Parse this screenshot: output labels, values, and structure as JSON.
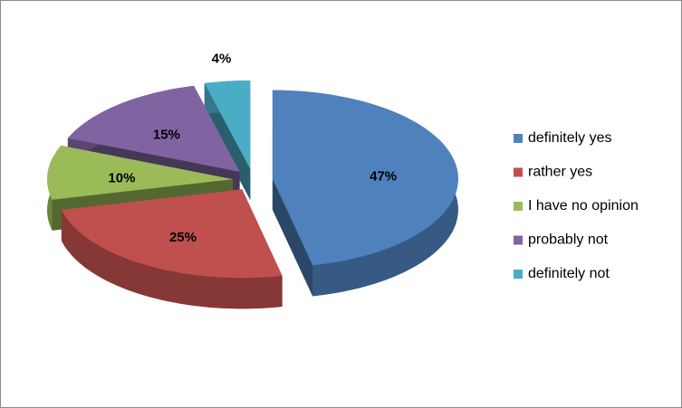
{
  "chart_data": {
    "type": "pie",
    "categories": [
      "definitely yes",
      "rather yes",
      "I have no opinion",
      "probably not",
      "definitely not"
    ],
    "values": [
      47,
      25,
      10,
      15,
      4
    ],
    "value_labels": [
      "47%",
      "25%",
      "10%",
      "15%",
      "4%"
    ],
    "colors": [
      "#4f81bd",
      "#c0504d",
      "#9bbb59",
      "#8064a2",
      "#4bacc6"
    ],
    "legend": "right"
  }
}
